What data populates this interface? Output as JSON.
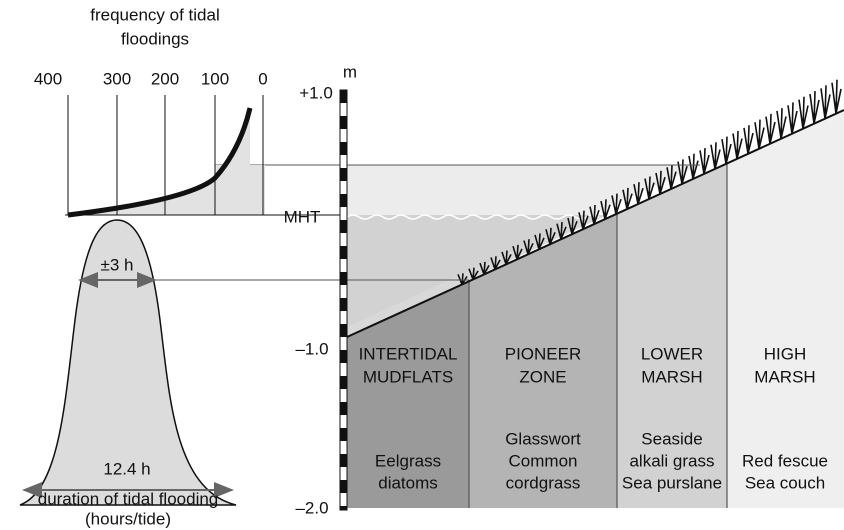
{
  "frequency": {
    "title": [
      "frequency of tidal",
      "floodings"
    ],
    "ticks": [
      "400",
      "300",
      "200",
      "100",
      "0"
    ]
  },
  "scale": {
    "unit": "m",
    "labels": [
      "+1.0",
      "MHT",
      "–1.0",
      "–2.0"
    ]
  },
  "duration": {
    "inner": "±3 h",
    "total": "12.4 h",
    "title": [
      "duration of tidal flooding",
      "(hours/tide)"
    ]
  },
  "zones": [
    {
      "name": [
        "INTERTIDAL",
        "MUDFLATS"
      ],
      "plants": [
        "Eelgrass",
        "diatoms"
      ]
    },
    {
      "name": [
        "PIONEER",
        "ZONE"
      ],
      "plants": [
        "Glasswort",
        "Common",
        "cordgrass"
      ]
    },
    {
      "name": [
        "LOWER",
        "MARSH"
      ],
      "plants": [
        "Seaside",
        "alkali grass",
        "Sea purslane"
      ]
    },
    {
      "name": [
        "HIGH",
        "MARSH"
      ],
      "plants": [
        "Red fescue",
        "Sea couch"
      ]
    }
  ]
}
